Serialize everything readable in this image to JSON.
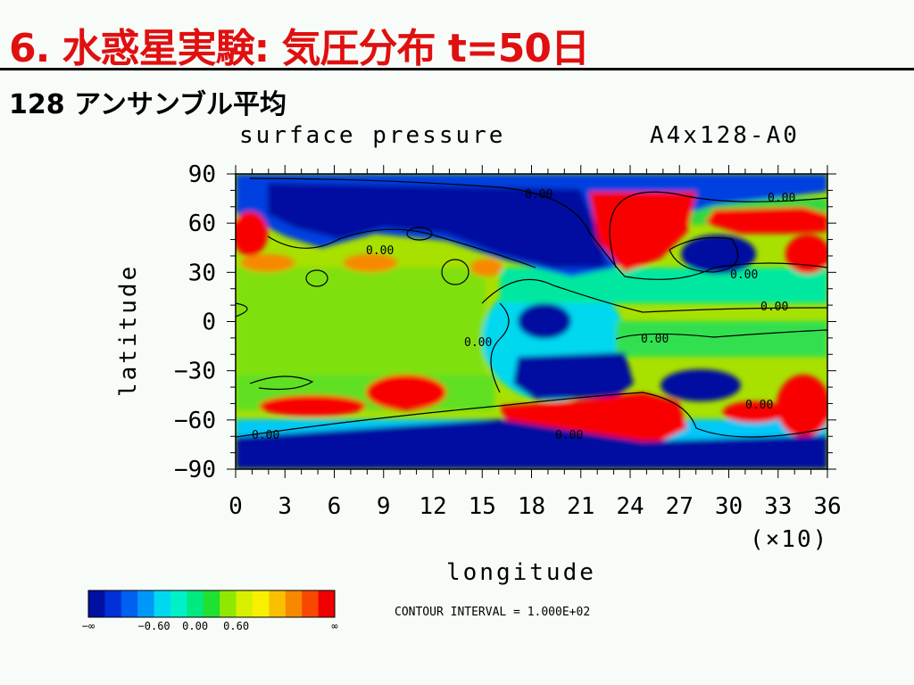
{
  "slide": {
    "title": "6. 水惑星実験: 気圧分布 t=50日",
    "subtitle": "128 アンサンブル平均"
  },
  "chart_data": {
    "type": "heatmap",
    "title": "surface pressure",
    "run_label": "A4x128-A0",
    "xlabel": "longitude",
    "ylabel": "latitude",
    "x_tick_labels": [
      "0",
      "3",
      "6",
      "9",
      "12",
      "15",
      "18",
      "21",
      "24",
      "27",
      "30",
      "33",
      "36"
    ],
    "x_scale_note": "(×10)",
    "y_tick_labels": [
      "90",
      "60",
      "30",
      "0",
      "−30",
      "−60",
      "−90"
    ],
    "xlim": [
      0,
      360
    ],
    "ylim": [
      -90,
      90
    ],
    "contour_interval_text": "CONTOUR INTERVAL = 1.000E+02",
    "contour_label": "0.00",
    "colorbar": {
      "colors": [
        "#0010a0",
        "#0030d8",
        "#0060f0",
        "#0098f8",
        "#00d8f0",
        "#00f0c8",
        "#00e880",
        "#20e030",
        "#90e800",
        "#d8f000",
        "#f8f000",
        "#f8c000",
        "#f88800",
        "#f84800",
        "#f00000"
      ],
      "tick_labels": [
        "−∞",
        "−0.60",
        "0.00",
        "0.60",
        "∞"
      ]
    },
    "regions_note_colors": {
      "low": "#001098",
      "high": "#f00000",
      "mid": "#b0e800"
    }
  }
}
